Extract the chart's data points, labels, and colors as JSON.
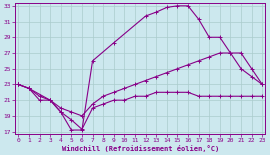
{
  "xlabel": "Windchill (Refroidissement éolien,°C)",
  "bg_color": "#cce8ee",
  "grid_color": "#aacccc",
  "line_color": "#880088",
  "xmin": 0,
  "xmax": 23,
  "ymin": 17,
  "ymax": 33,
  "yticks": [
    17,
    19,
    21,
    23,
    25,
    27,
    29,
    31,
    33
  ],
  "xticks": [
    0,
    1,
    2,
    3,
    4,
    5,
    6,
    7,
    8,
    9,
    10,
    11,
    12,
    13,
    14,
    15,
    16,
    17,
    18,
    19,
    20,
    21,
    22,
    23
  ],
  "line1_x": [
    0,
    1,
    2,
    3,
    4,
    5,
    6,
    7,
    8,
    9,
    10,
    11,
    12,
    13,
    14,
    15,
    16,
    17,
    18,
    19,
    20,
    21,
    22,
    23
  ],
  "line1_y": [
    23,
    22.5,
    21,
    21,
    19.5,
    18.5,
    17.3,
    20,
    20.5,
    21,
    21,
    21.5,
    21.5,
    22,
    22,
    22,
    22,
    21.5,
    21.5,
    21.5,
    21.5,
    21.5,
    21.5,
    21.5
  ],
  "line2_x": [
    0,
    1,
    2,
    3,
    4,
    5,
    6,
    7,
    8,
    9,
    10,
    11,
    12,
    13,
    14,
    15,
    16,
    17,
    18,
    19,
    20,
    21,
    22,
    23
  ],
  "line2_y": [
    23,
    22.5,
    21.5,
    21,
    20,
    19.5,
    19,
    20.5,
    21.5,
    22,
    22.5,
    23,
    23.5,
    24,
    24.5,
    25,
    25.5,
    26,
    26.5,
    27,
    27,
    25,
    24,
    23
  ],
  "line3_x": [
    0,
    1,
    3,
    4,
    5,
    6,
    7,
    9,
    12,
    13,
    14,
    15,
    16,
    17,
    18,
    19,
    20,
    21,
    22,
    23
  ],
  "line3_y": [
    23,
    22.5,
    21,
    19.5,
    17.2,
    17.2,
    26,
    28.3,
    31.7,
    32.2,
    32.8,
    33,
    33,
    31.3,
    29,
    29,
    27,
    27,
    25,
    23
  ]
}
